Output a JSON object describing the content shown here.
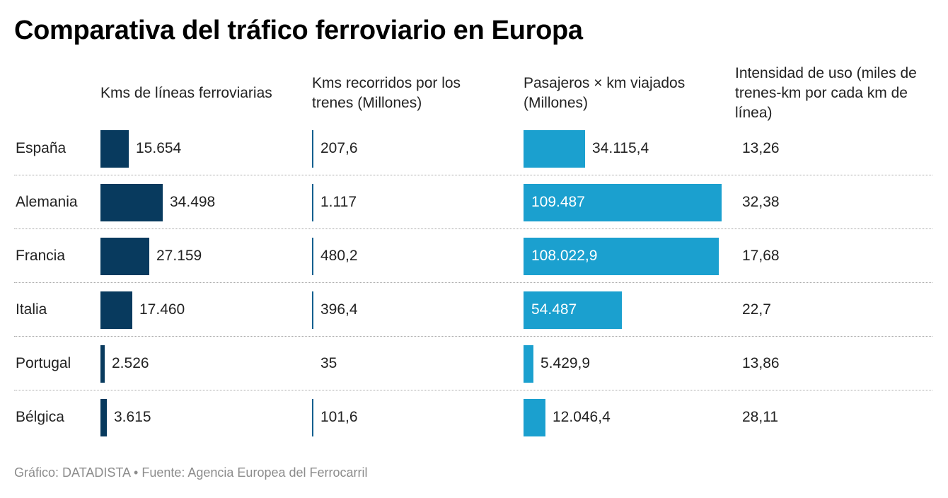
{
  "title": "Comparativa del tráfico ferroviario en Europa",
  "footer": "Gráfico: DATADISTA • Fuente: Agencia Europea del Ferrocarril",
  "colors": {
    "dark_bar": "#083a5e",
    "light_bar": "#1ba0cf",
    "line": "#0b5f8f"
  },
  "chart_data": {
    "type": "table",
    "title": "Comparativa del tráfico ferroviario en Europa",
    "columns": [
      {
        "key": "kms_lineas",
        "label": "Kms de líneas ferroviarias",
        "max": 34498
      },
      {
        "key": "kms_recorridos",
        "label": "Kms recorridos por los trenes (Millones)"
      },
      {
        "key": "pasajeros_km",
        "label": "Pasajeros × km viajados (Millones)",
        "max": 109487
      },
      {
        "key": "intensidad",
        "label": "Intensidad de uso (miles de trenes-km por cada km de línea)"
      }
    ],
    "rows": [
      {
        "country": "España",
        "kms_lineas": 15654,
        "kms_lineas_label": "15.654",
        "kms_recorridos": 207.6,
        "kms_recorridos_label": "207,6",
        "pasajeros_km": 34115.4,
        "pasajeros_km_label": "34.115,4",
        "intensidad_label": "13,26"
      },
      {
        "country": "Alemania",
        "kms_lineas": 34498,
        "kms_lineas_label": "34.498",
        "kms_recorridos": 1117,
        "kms_recorridos_label": "1.117",
        "pasajeros_km": 109487,
        "pasajeros_km_label": "109.487",
        "intensidad_label": "32,38"
      },
      {
        "country": "Francia",
        "kms_lineas": 27159,
        "kms_lineas_label": "27.159",
        "kms_recorridos": 480.2,
        "kms_recorridos_label": "480,2",
        "pasajeros_km": 108022.9,
        "pasajeros_km_label": "108.022,9",
        "intensidad_label": "17,68"
      },
      {
        "country": "Italia",
        "kms_lineas": 17460,
        "kms_lineas_label": "17.460",
        "kms_recorridos": 396.4,
        "kms_recorridos_label": "396,4",
        "pasajeros_km": 54487,
        "pasajeros_km_label": "54.487",
        "intensidad_label": "22,7"
      },
      {
        "country": "Portugal",
        "kms_lineas": 2526,
        "kms_lineas_label": "2.526",
        "kms_recorridos": 35,
        "kms_recorridos_label": "35",
        "pasajeros_km": 5429.9,
        "pasajeros_km_label": "5.429,9",
        "intensidad_label": "13,86"
      },
      {
        "country": "Bélgica",
        "kms_lineas": 3615,
        "kms_lineas_label": "3.615",
        "kms_recorridos": 101.6,
        "kms_recorridos_label": "101,6",
        "pasajeros_km": 12046.4,
        "pasajeros_km_label": "12.046,4",
        "intensidad_label": "28,11"
      }
    ]
  }
}
